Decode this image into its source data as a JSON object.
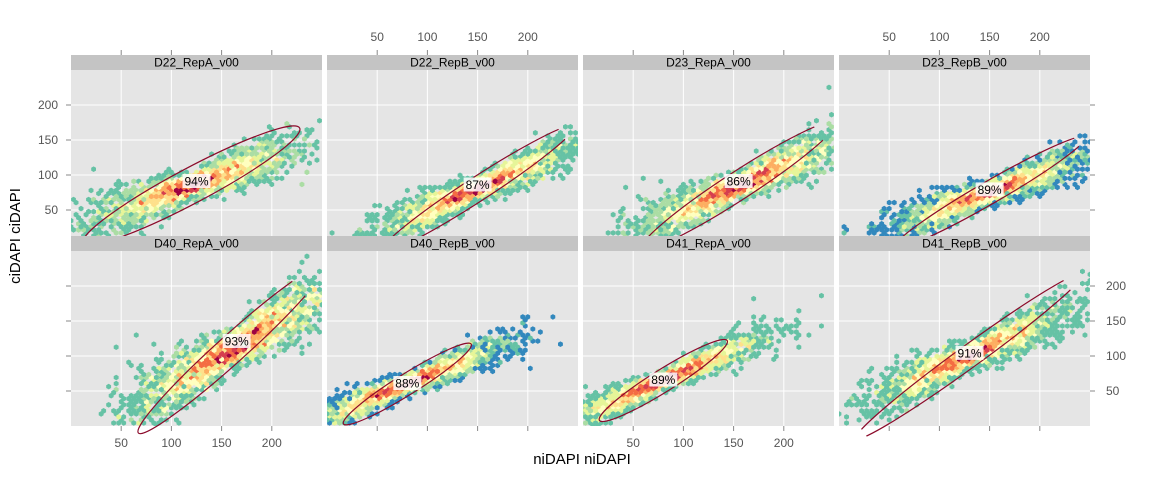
{
  "chart_data": {
    "type": "hexbin-scatter-grid",
    "xlabel": "niDAPI niDAPI",
    "ylabel": "ciDAPI ciDAPI",
    "xlim": [
      0,
      250
    ],
    "ylim": [
      0,
      250
    ],
    "xticks": [
      50,
      100,
      150,
      200
    ],
    "yticks": [
      50,
      100,
      150,
      200
    ],
    "grid": true,
    "ellipse_color": "#8b0a2a",
    "colors": [
      "#5e4fa2",
      "#3288bd",
      "#66c2a5",
      "#abdda4",
      "#e6f598",
      "#ffffbf",
      "#fee08b",
      "#fdae61",
      "#f46d43",
      "#d53e4f",
      "#9e0142"
    ],
    "panels": [
      {
        "name": "D22_RepA_v00",
        "coverage": "94%",
        "center": [
          120,
          85
        ],
        "label_pos": [
          125,
          90
        ],
        "slope": 0.5,
        "spread": 14,
        "ellipse": {
          "cx": 120,
          "cy": 85,
          "rx": 122,
          "ry": 25,
          "angle": 28
        }
      },
      {
        "name": "D22_RepB_v00",
        "coverage": "87%",
        "center": [
          150,
          80
        ],
        "label_pos": [
          150,
          85
        ],
        "slope": 0.62,
        "spread": 12,
        "ellipse": {
          "cx": 150,
          "cy": 80,
          "rx": 115,
          "ry": 17,
          "angle": 33
        }
      },
      {
        "name": "D23_RepA_v00",
        "coverage": "86%",
        "center": [
          155,
          85
        ],
        "label_pos": [
          155,
          90
        ],
        "slope": 0.62,
        "spread": 14,
        "ellipse": {
          "cx": 155,
          "cy": 85,
          "rx": 115,
          "ry": 20,
          "angle": 33
        }
      },
      {
        "name": "D23_RepB_v00",
        "coverage": "89%",
        "center": [
          150,
          75
        ],
        "label_pos": [
          150,
          78
        ],
        "slope": 0.52,
        "spread": 12,
        "ellipse": {
          "cx": 150,
          "cy": 75,
          "rx": 110,
          "ry": 16,
          "angle": 30
        }
      },
      {
        "name": "D40_RepA_v00",
        "coverage": "93%",
        "center": [
          160,
          110
        ],
        "label_pos": [
          165,
          120
        ],
        "slope": 0.85,
        "spread": 20,
        "ellipse": {
          "cx": 160,
          "cy": 110,
          "rx": 125,
          "ry": 20,
          "angle": 42
        }
      },
      {
        "name": "D40_RepB_v00",
        "coverage": "88%",
        "center": [
          80,
          60
        ],
        "label_pos": [
          80,
          60
        ],
        "slope": 0.58,
        "spread": 10,
        "ellipse": {
          "cx": 80,
          "cy": 60,
          "rx": 75,
          "ry": 15,
          "angle": 32
        }
      },
      {
        "name": "D41_RepA_v00",
        "coverage": "89%",
        "center": [
          80,
          65
        ],
        "label_pos": [
          80,
          65
        ],
        "slope": 0.62,
        "spread": 10,
        "ellipse": {
          "cx": 80,
          "cy": 65,
          "rx": 75,
          "ry": 16,
          "angle": 32
        }
      },
      {
        "name": "D41_RepB_v00",
        "coverage": "91%",
        "center": [
          130,
          100
        ],
        "label_pos": [
          130,
          103
        ],
        "slope": 0.65,
        "spread": 14,
        "ellipse": {
          "cx": 130,
          "cy": 100,
          "rx": 140,
          "ry": 16,
          "angle": 36
        }
      }
    ]
  }
}
